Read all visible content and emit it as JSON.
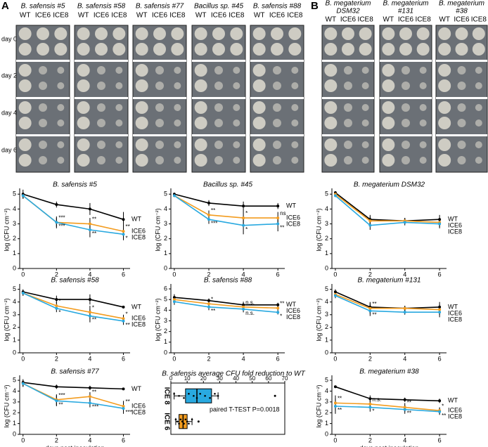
{
  "panels": [
    "A",
    "B"
  ],
  "day_labels": [
    "day 0",
    "day 2",
    "day 4",
    "day 6"
  ],
  "photo_panels": [
    {
      "title_lines": [
        "B. safensis #5"
      ],
      "columns": [
        "WT",
        "ICE6",
        "ICE8"
      ]
    },
    {
      "title_lines": [
        "B. safensis #58"
      ],
      "columns": [
        "WT",
        "ICE6",
        "ICE8"
      ]
    },
    {
      "title_lines": [
        "B. safensis #77"
      ],
      "columns": [
        "WT",
        "ICE6",
        "ICE8"
      ]
    },
    {
      "title_lines": [
        "Bacillus sp. #45"
      ],
      "columns": [
        "WT",
        "ICE6",
        "ICE8"
      ]
    },
    {
      "title_lines": [
        "B. safensis #88"
      ],
      "columns": [
        "WT",
        "ICE6",
        "ICE8"
      ]
    },
    {
      "title_lines": [
        "B. megaterium",
        "DSM32"
      ],
      "columns": [
        "WT",
        "ICE6",
        "ICE8"
      ]
    },
    {
      "title_lines": [
        "B. megaterium",
        "#131"
      ],
      "columns": [
        "WT",
        "ICE6",
        "ICE8"
      ]
    },
    {
      "title_lines": [
        "B. megaterium",
        "#38"
      ],
      "columns": [
        "WT",
        "ICE6",
        "ICE8"
      ]
    }
  ],
  "chart_data": [
    {
      "type": "line",
      "title": "B. safensis #5",
      "ylabel": "log (CFU cm⁻²)",
      "x": [
        0,
        2,
        4,
        6
      ],
      "xlim": [
        -0.2,
        6.4
      ],
      "xticks": [
        0,
        2,
        4,
        6
      ],
      "ylim": [
        0,
        5.2
      ],
      "yticks": [
        0,
        1,
        2,
        3,
        4,
        5
      ],
      "series": [
        {
          "name": "WT",
          "color": "#000000",
          "values": [
            5.0,
            4.3,
            4.0,
            3.3
          ],
          "errors": [
            0.3,
            0.2,
            0.4,
            0.5
          ],
          "significance": [
            null,
            null,
            null,
            null
          ]
        },
        {
          "name": "ICE6",
          "color": "#f39c1f",
          "values": [
            4.9,
            3.1,
            3.0,
            2.5
          ],
          "errors": [
            0.2,
            0.3,
            0.4,
            0.4
          ],
          "significance": [
            null,
            "***",
            "**",
            "**"
          ]
        },
        {
          "name": "ICE8",
          "color": "#29a9e0",
          "values": [
            4.9,
            3.1,
            2.6,
            2.3
          ],
          "errors": [
            0.2,
            0.4,
            0.5,
            0.4
          ],
          "significance": [
            null,
            "***",
            "**",
            "*"
          ]
        }
      ]
    },
    {
      "type": "line",
      "title": "Bacillus sp. #45",
      "ylabel": "log (CFU cm⁻²)",
      "x": [
        0,
        2,
        4,
        6
      ],
      "xlim": [
        -0.2,
        6.4
      ],
      "xticks": [
        0,
        2,
        4,
        6
      ],
      "ylim": [
        0,
        5.2
      ],
      "yticks": [
        0,
        1,
        2,
        3,
        4,
        5
      ],
      "series": [
        {
          "name": "WT",
          "color": "#000000",
          "values": [
            5.0,
            4.4,
            4.2,
            4.2
          ],
          "errors": [
            0.1,
            0.2,
            0.3,
            0.2
          ],
          "significance": [
            null,
            null,
            null,
            null
          ]
        },
        {
          "name": "ICE6",
          "color": "#f39c1f",
          "values": [
            4.9,
            3.6,
            3.4,
            3.4
          ],
          "errors": [
            0.1,
            0.3,
            0.5,
            0.4
          ],
          "significance": [
            null,
            "**",
            "*",
            "ns"
          ]
        },
        {
          "name": "ICE8",
          "color": "#29a9e0",
          "values": [
            4.9,
            3.3,
            2.9,
            3.0
          ],
          "errors": [
            0.1,
            0.3,
            0.6,
            0.5
          ],
          "significance": [
            null,
            "***",
            "*",
            "**"
          ]
        }
      ]
    },
    {
      "type": "line",
      "title": "B. megaterium DSM32",
      "ylabel": "log (CFU cm⁻²)",
      "x": [
        0,
        2,
        4,
        6
      ],
      "xlim": [
        -0.2,
        6.4
      ],
      "xticks": [
        0,
        2,
        4,
        6
      ],
      "ylim": [
        0,
        5.2
      ],
      "yticks": [
        0,
        1,
        2,
        3,
        4,
        5
      ],
      "series": [
        {
          "name": "WT",
          "color": "#000000",
          "values": [
            5.1,
            3.3,
            3.2,
            3.3
          ],
          "errors": [
            0.1,
            0.3,
            0.2,
            0.3
          ],
          "significance": [
            null,
            null,
            null,
            null
          ]
        },
        {
          "name": "ICE6",
          "color": "#f39c1f",
          "values": [
            5.0,
            3.2,
            3.2,
            3.1
          ],
          "errors": [
            0.1,
            0.3,
            0.2,
            0.3
          ],
          "significance": [
            null,
            null,
            null,
            null
          ]
        },
        {
          "name": "ICE8",
          "color": "#29a9e0",
          "values": [
            4.9,
            2.9,
            3.1,
            3.0
          ],
          "errors": [
            0.1,
            0.3,
            0.2,
            0.3
          ],
          "significance": [
            null,
            null,
            null,
            null
          ]
        }
      ]
    },
    {
      "type": "line",
      "title": "B. safensis #58",
      "ylabel": "log (CFU cm⁻²)",
      "x": [
        0,
        2,
        4,
        6
      ],
      "xlim": [
        -0.2,
        6.4
      ],
      "xticks": [
        0,
        2,
        4,
        6
      ],
      "ylim": [
        0,
        5.2
      ],
      "yticks": [
        0,
        1,
        2,
        3,
        4,
        5
      ],
      "series": [
        {
          "name": "WT",
          "color": "#000000",
          "values": [
            4.8,
            4.2,
            4.2,
            3.6
          ],
          "errors": [
            0.2,
            0.3,
            0.4,
            0.1
          ],
          "significance": [
            null,
            null,
            null,
            null
          ]
        },
        {
          "name": "ICE6",
          "color": "#f39c1f",
          "values": [
            4.7,
            3.7,
            3.2,
            2.7
          ],
          "errors": [
            0.2,
            0.3,
            0.5,
            0.3
          ],
          "significance": [
            null,
            "*",
            "*",
            "*"
          ]
        },
        {
          "name": "ICE8",
          "color": "#29a9e0",
          "values": [
            4.7,
            3.5,
            2.9,
            2.5
          ],
          "errors": [
            0.2,
            0.3,
            0.5,
            0.3
          ],
          "significance": [
            null,
            "*",
            "**",
            "**"
          ]
        }
      ]
    },
    {
      "type": "line",
      "title": "B. safensis #88",
      "ylabel": "log (CFU cm⁻²)",
      "x": [
        0,
        2,
        4,
        6
      ],
      "xlim": [
        -0.2,
        6.4
      ],
      "xticks": [
        0,
        2,
        4,
        6
      ],
      "ylim": [
        0,
        6.2
      ],
      "yticks": [
        0,
        1,
        2,
        3,
        4,
        5,
        6
      ],
      "series": [
        {
          "name": "WT",
          "color": "#000000",
          "values": [
            5.2,
            4.9,
            4.5,
            4.5
          ],
          "errors": [
            0.3,
            0.2,
            0.3,
            0.2
          ],
          "significance": [
            null,
            null,
            null,
            null
          ]
        },
        {
          "name": "ICE6",
          "color": "#f39c1f",
          "values": [
            5.0,
            4.6,
            4.3,
            4.2
          ],
          "errors": [
            0.3,
            0.3,
            0.3,
            0.2
          ],
          "significance": [
            null,
            "*",
            "n.s.",
            "**"
          ]
        },
        {
          "name": "ICE8",
          "color": "#29a9e0",
          "values": [
            4.8,
            4.3,
            4.1,
            3.8
          ],
          "errors": [
            0.3,
            0.3,
            0.3,
            0.2
          ],
          "significance": [
            null,
            "**",
            "n.s.",
            "*"
          ]
        }
      ]
    },
    {
      "type": "line",
      "title": "B. megaterium #131",
      "ylabel": "log (CFU cm⁻²)",
      "x": [
        0,
        2,
        4,
        6
      ],
      "xlim": [
        -0.2,
        6.4
      ],
      "xticks": [
        0,
        2,
        4,
        6
      ],
      "ylim": [
        0,
        5.2
      ],
      "yticks": [
        0,
        1,
        2,
        3,
        4,
        5
      ],
      "series": [
        {
          "name": "WT",
          "color": "#000000",
          "values": [
            4.8,
            3.6,
            3.5,
            3.6
          ],
          "errors": [
            0.2,
            0.4,
            0.2,
            0.4
          ],
          "significance": [
            null,
            null,
            null,
            null
          ]
        },
        {
          "name": "ICE6",
          "color": "#f39c1f",
          "values": [
            4.6,
            3.5,
            3.5,
            3.4
          ],
          "errors": [
            0.2,
            0.4,
            0.2,
            0.4
          ],
          "significance": [
            null,
            "**",
            null,
            null
          ]
        },
        {
          "name": "ICE8",
          "color": "#29a9e0",
          "values": [
            4.5,
            3.3,
            3.2,
            3.2
          ],
          "errors": [
            0.2,
            0.4,
            0.2,
            0.4
          ],
          "significance": [
            null,
            "**",
            null,
            null
          ]
        }
      ]
    },
    {
      "type": "line",
      "title": "B. safensis #77",
      "ylabel": "log (CFU cm⁻²)",
      "xlabel": "days post inoculation",
      "x": [
        0,
        2,
        4,
        6
      ],
      "xlim": [
        -0.2,
        6.4
      ],
      "xticks": [
        0,
        2,
        4,
        6
      ],
      "ylim": [
        0,
        5.2
      ],
      "yticks": [
        0,
        1,
        2,
        3,
        4,
        5
      ],
      "series": [
        {
          "name": "WT",
          "color": "#000000",
          "values": [
            4.8,
            4.4,
            4.3,
            4.2
          ],
          "errors": [
            0.3,
            0.2,
            0.2,
            0.1
          ],
          "significance": [
            null,
            null,
            null,
            null
          ]
        },
        {
          "name": "ICE6",
          "color": "#f39c1f",
          "values": [
            4.7,
            3.2,
            3.5,
            2.6
          ],
          "errors": [
            0.3,
            0.5,
            0.4,
            0.5
          ],
          "significance": [
            null,
            "***",
            "**",
            "**"
          ]
        },
        {
          "name": "ICE8",
          "color": "#29a9e0",
          "values": [
            4.7,
            3.1,
            2.9,
            2.4
          ],
          "errors": [
            0.3,
            0.5,
            0.4,
            0.5
          ],
          "significance": [
            null,
            "**",
            "***",
            "***"
          ]
        }
      ]
    },
    {
      "type": "box",
      "title": "B. safensis average CFU fold reduction to WT",
      "annotation": "paired T-TEST P=0.0018",
      "xlim": [
        0,
        70
      ],
      "xticks": [
        0,
        10,
        20,
        30,
        40,
        50,
        60,
        70
      ],
      "series": [
        {
          "name": "ICE 8",
          "color": "#29a9e0",
          "whislo": 2,
          "q1": 9,
          "med": 16,
          "q3": 25,
          "whishi": 29,
          "fliers": [
            64
          ],
          "points": [
            2,
            5,
            8,
            11,
            14,
            16,
            18,
            21,
            24,
            27,
            29
          ]
        },
        {
          "name": "ICE 6",
          "color": "#f39c1f",
          "whislo": 3,
          "q1": 5,
          "med": 7.5,
          "q3": 10,
          "whishi": 13,
          "fliers": [
            17
          ],
          "points": [
            3,
            4,
            5,
            6,
            7,
            8,
            9,
            10,
            11,
            13
          ]
        }
      ]
    },
    {
      "type": "line",
      "title": "B. megaterium #38",
      "ylabel": "log (CFU cm⁻²)",
      "xlabel": "days post inoculation",
      "x": [
        0,
        2,
        4,
        6
      ],
      "xlim": [
        -0.2,
        6.4
      ],
      "xticks": [
        0,
        2,
        4,
        6
      ],
      "ylim": [
        0,
        5.2
      ],
      "yticks": [
        0,
        1,
        2,
        3,
        4,
        5
      ],
      "series": [
        {
          "name": "WT",
          "color": "#000000",
          "values": [
            4.4,
            3.3,
            3.2,
            3.1
          ],
          "errors": [
            0.1,
            0.3,
            0.2,
            0.2
          ],
          "significance": [
            null,
            null,
            null,
            null
          ]
        },
        {
          "name": "ICE6",
          "color": "#f39c1f",
          "values": [
            2.9,
            2.8,
            2.5,
            2.2
          ],
          "errors": [
            0.7,
            0.4,
            0.4,
            0.3
          ],
          "significance": [
            "**",
            "n.s.",
            "**",
            "*"
          ]
        },
        {
          "name": "ICE8",
          "color": "#29a9e0",
          "values": [
            2.6,
            2.5,
            2.3,
            2.1
          ],
          "errors": [
            0.7,
            0.4,
            0.4,
            0.3
          ],
          "significance": [
            "**",
            "*",
            "**",
            "**"
          ]
        }
      ]
    }
  ]
}
